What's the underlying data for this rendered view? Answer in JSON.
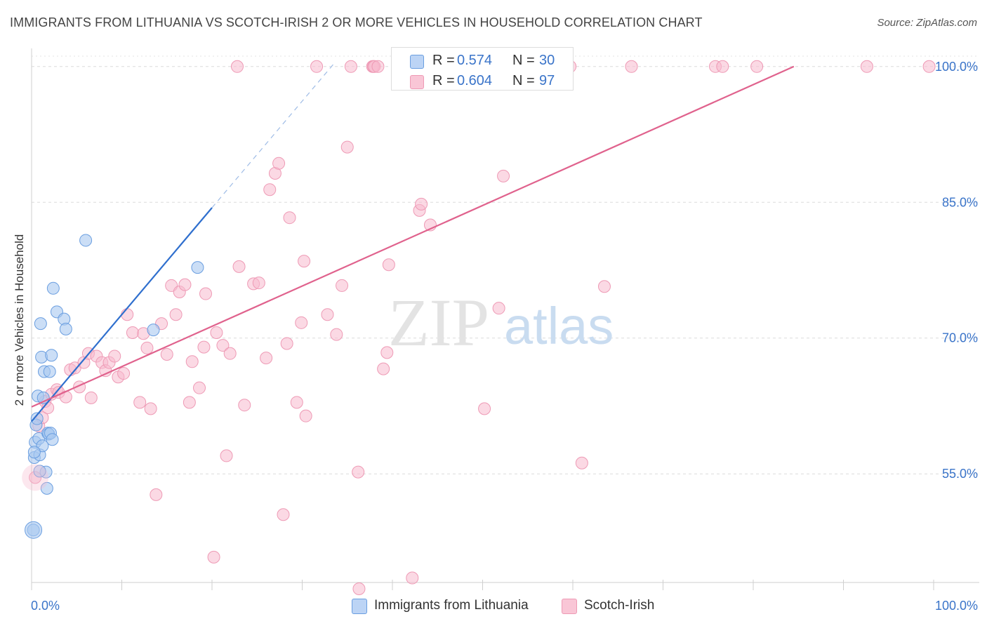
{
  "header": {
    "title": "IMMIGRANTS FROM LITHUANIA VS SCOTCH-IRISH 2 OR MORE VEHICLES IN HOUSEHOLD CORRELATION CHART",
    "source": "Source: ZipAtlas.com"
  },
  "watermark": {
    "zip": "ZIP",
    "atlas": "atlas"
  },
  "legend": {
    "r_label": "R =",
    "n_label": "N =",
    "series1": {
      "r": "0.574",
      "n": "30"
    },
    "series2": {
      "r": "0.604",
      "n": "97"
    }
  },
  "chart_data": {
    "type": "scatter",
    "title": "IMMIGRANTS FROM LITHUANIA VS SCOTCH-IRISH 2 OR MORE VEHICLES IN HOUSEHOLD CORRELATION CHART",
    "xlabel": "",
    "ylabel": "2 or more Vehicles in Household",
    "xlim": [
      0,
      100
    ],
    "ylim": [
      43,
      102
    ],
    "x_tick_labels": [
      "0.0%",
      "100.0%"
    ],
    "y_ticks": [
      55,
      70,
      85,
      100
    ],
    "y_tick_labels": [
      "55.0%",
      "70.0%",
      "85.0%",
      "100.0%"
    ],
    "grid": true,
    "legend_position": "top-center",
    "colors": {
      "lithuania_fill": "#a9c8f0",
      "lithuania_stroke": "#6a9ee0",
      "lithuania_line": "#2f6fce",
      "scotch_fill": "#f7b9cd",
      "scotch_stroke": "#ee9ab5",
      "scotch_line": "#e0628d"
    },
    "series": [
      {
        "name": "Immigrants from Lithuania",
        "r": 0.574,
        "n": 30,
        "trend": {
          "x1": 0,
          "y1": 60.8,
          "x2": 20,
          "y2": 84.4,
          "dashed_to_x": 33.5,
          "dashed_to_y": 100.3
        },
        "points": [
          [
            0.2,
            48.8
          ],
          [
            0.3,
            56.8
          ],
          [
            0.4,
            58.5
          ],
          [
            0.5,
            60.4
          ],
          [
            0.6,
            61.1
          ],
          [
            0.7,
            63.6
          ],
          [
            0.8,
            58.9
          ],
          [
            0.9,
            57.1
          ],
          [
            1.0,
            71.6
          ],
          [
            1.1,
            67.9
          ],
          [
            1.2,
            58.1
          ],
          [
            1.4,
            66.3
          ],
          [
            1.6,
            55.2
          ],
          [
            1.7,
            53.4
          ],
          [
            1.8,
            59.5
          ],
          [
            1.9,
            59.4
          ],
          [
            2.0,
            66.3
          ],
          [
            2.1,
            59.5
          ],
          [
            2.2,
            68.1
          ],
          [
            2.3,
            58.8
          ],
          [
            2.4,
            75.5
          ],
          [
            2.8,
            72.9
          ],
          [
            3.6,
            72.1
          ],
          [
            3.8,
            71.0
          ],
          [
            6.0,
            80.8
          ],
          [
            13.5,
            70.9
          ],
          [
            18.4,
            77.8
          ],
          [
            0.9,
            55.3
          ],
          [
            0.3,
            57.4
          ],
          [
            1.3,
            63.4
          ]
        ]
      },
      {
        "name": "Scotch-Irish",
        "r": 0.604,
        "n": 97,
        "trend": {
          "x1": 0,
          "y1": 62.4,
          "x2": 84.5,
          "y2": 100.0
        },
        "points": [
          [
            0.4,
            54.6
          ],
          [
            0.8,
            60.3
          ],
          [
            1.2,
            61.2
          ],
          [
            1.5,
            63.0
          ],
          [
            1.8,
            62.3
          ],
          [
            2.2,
            63.8
          ],
          [
            2.8,
            64.3
          ],
          [
            3.0,
            64.0
          ],
          [
            3.8,
            63.5
          ],
          [
            4.3,
            66.5
          ],
          [
            4.8,
            66.7
          ],
          [
            5.3,
            64.6
          ],
          [
            5.8,
            67.3
          ],
          [
            6.3,
            68.3
          ],
          [
            6.6,
            63.4
          ],
          [
            7.2,
            68.0
          ],
          [
            7.8,
            67.3
          ],
          [
            8.2,
            66.4
          ],
          [
            8.6,
            67.3
          ],
          [
            9.2,
            68.0
          ],
          [
            9.6,
            65.7
          ],
          [
            10.2,
            66.1
          ],
          [
            10.6,
            72.6
          ],
          [
            11.2,
            70.6
          ],
          [
            12.0,
            62.9
          ],
          [
            12.8,
            68.9
          ],
          [
            12.4,
            70.5
          ],
          [
            13.2,
            62.2
          ],
          [
            13.8,
            52.7
          ],
          [
            14.4,
            71.6
          ],
          [
            15.0,
            68.2
          ],
          [
            15.5,
            75.8
          ],
          [
            16.0,
            72.6
          ],
          [
            16.4,
            75.1
          ],
          [
            17.0,
            75.9
          ],
          [
            17.5,
            62.9
          ],
          [
            17.8,
            67.4
          ],
          [
            18.6,
            64.5
          ],
          [
            19.1,
            69.0
          ],
          [
            19.3,
            74.9
          ],
          [
            20.2,
            45.8
          ],
          [
            20.5,
            70.6
          ],
          [
            21.2,
            69.2
          ],
          [
            21.6,
            57.0
          ],
          [
            22.0,
            68.3
          ],
          [
            22.8,
            100.0
          ],
          [
            23.0,
            77.9
          ],
          [
            23.6,
            62.6
          ],
          [
            24.6,
            76.0
          ],
          [
            25.2,
            76.1
          ],
          [
            26.0,
            67.8
          ],
          [
            26.4,
            86.4
          ],
          [
            27.0,
            88.2
          ],
          [
            27.4,
            89.3
          ],
          [
            27.9,
            50.5
          ],
          [
            28.3,
            69.4
          ],
          [
            28.6,
            83.3
          ],
          [
            29.4,
            62.9
          ],
          [
            29.9,
            71.7
          ],
          [
            30.2,
            78.5
          ],
          [
            30.4,
            61.4
          ],
          [
            31.6,
            100.0
          ],
          [
            32.8,
            72.6
          ],
          [
            33.8,
            70.4
          ],
          [
            34.4,
            75.8
          ],
          [
            35.0,
            91.1
          ],
          [
            35.4,
            100.0
          ],
          [
            36.2,
            55.2
          ],
          [
            36.3,
            42.3
          ],
          [
            37.8,
            100.0
          ],
          [
            37.9,
            100.0
          ],
          [
            38.0,
            100.0
          ],
          [
            38.4,
            100.0
          ],
          [
            39.0,
            66.6
          ],
          [
            39.4,
            68.4
          ],
          [
            39.6,
            78.1
          ],
          [
            40.6,
            100.0
          ],
          [
            40.9,
            100.0
          ],
          [
            41.6,
            100.0
          ],
          [
            42.2,
            43.5
          ],
          [
            43.0,
            84.1
          ],
          [
            43.2,
            84.8
          ],
          [
            44.2,
            82.5
          ],
          [
            50.2,
            62.2
          ],
          [
            51.8,
            73.3
          ],
          [
            52.3,
            87.9
          ],
          [
            55.4,
            100.0
          ],
          [
            57.8,
            100.0
          ],
          [
            61.0,
            56.2
          ],
          [
            63.5,
            75.7
          ],
          [
            66.5,
            100.0
          ],
          [
            75.8,
            100.0
          ],
          [
            76.6,
            100.0
          ],
          [
            80.4,
            100.0
          ],
          [
            92.6,
            100.0
          ],
          [
            99.5,
            100.0
          ],
          [
            59.7,
            100.0
          ]
        ]
      }
    ]
  },
  "bottom_legend": {
    "series1": "Immigrants from Lithuania",
    "series2": "Scotch-Irish"
  }
}
